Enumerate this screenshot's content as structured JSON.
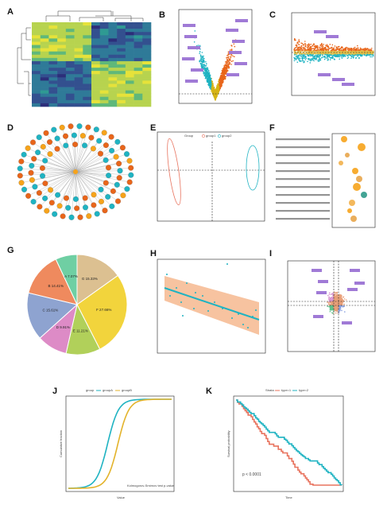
{
  "panels": {
    "A": {
      "letter": "A"
    },
    "B": {
      "letter": "B"
    },
    "C": {
      "letter": "C"
    },
    "D": {
      "letter": "D"
    },
    "E": {
      "letter": "E"
    },
    "F": {
      "letter": "F"
    },
    "G": {
      "letter": "G"
    },
    "H": {
      "letter": "H"
    },
    "I": {
      "letter": "I"
    },
    "J": {
      "letter": "J"
    },
    "K": {
      "letter": "K"
    }
  },
  "colors": {
    "orange": "#e8651a",
    "teal": "#1fb3c2",
    "salmon": "#e8735e",
    "gold": "#e3c14a",
    "purple": "#a07ad6"
  },
  "chart_data": [
    {
      "id": "G",
      "type": "pie",
      "slices": [
        {
          "label": "G 15.33%",
          "value": 15.33,
          "color": "#dcc091"
        },
        {
          "label": "F 27.66%",
          "value": 27.66,
          "color": "#f2d43c"
        },
        {
          "label": "E 11.21%",
          "value": 11.21,
          "color": "#b1d05a"
        },
        {
          "label": "D 9.91%",
          "value": 9.91,
          "color": "#dd8bc6"
        },
        {
          "label": "C 15.61%",
          "value": 15.61,
          "color": "#8ea3d0"
        },
        {
          "label": "B 14.41%",
          "value": 14.41,
          "color": "#ef8a5e"
        },
        {
          "label": "A 7.07%",
          "value": 7.07,
          "color": "#6fcfa3"
        }
      ]
    },
    {
      "id": "J",
      "type": "line",
      "legend_title": "group",
      "series": [
        {
          "name": "groupA",
          "color": "#1fb3c2"
        },
        {
          "name": "groupB",
          "color": "#e3b32b"
        }
      ],
      "ylabel": "Cumulative fraction",
      "xlabel": "Value",
      "annotation": "Kolmogorov-Smirnov test p-value"
    },
    {
      "id": "K",
      "type": "line",
      "legend_title": "Strata",
      "series": [
        {
          "name": "type=1",
          "color": "#e8735e"
        },
        {
          "name": "type=2",
          "color": "#1fb3c2"
        }
      ],
      "ylabel": "Survival probability",
      "xlabel": "Time",
      "annotation": "p < 0.0001"
    },
    {
      "id": "E",
      "type": "scatter",
      "legend_title": "Group",
      "series": [
        {
          "name": "group1",
          "color": "#e8735e"
        },
        {
          "name": "group2",
          "color": "#1fb3c2"
        }
      ]
    },
    {
      "id": "H",
      "type": "scatter",
      "xlabel": "Num",
      "ylabel": "Val"
    }
  ]
}
